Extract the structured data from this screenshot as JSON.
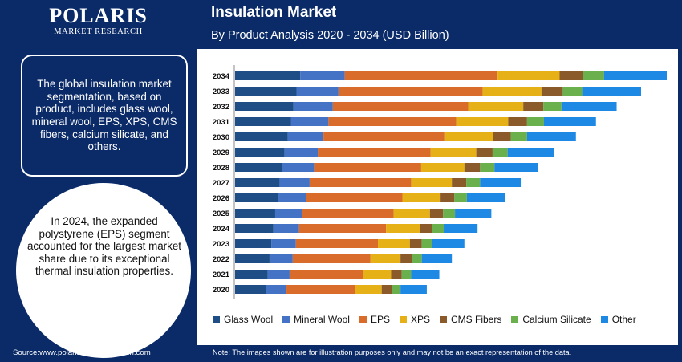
{
  "branding": {
    "logo_main": "POLARIS",
    "logo_sub": "MARKET RESEARCH"
  },
  "header": {
    "title": "Insulation Market",
    "subtitle": "By Product Analysis 2020 - 2034 (USD Billion)"
  },
  "sidebar": {
    "summary_text": "The global insulation market segmentation, based on product, includes glass wool, mineral wool, EPS, XPS, CMS fibers, calcium silicate, and others.",
    "highlight_text": "In 2024, the expanded polystyrene (EPS) segment accounted for the largest market share due to its exceptional thermal insulation properties."
  },
  "footer": {
    "source": "Source:www.polarismarketresearch.com",
    "note": "Note: The images shown are for illustration purposes only and may not be an exact representation of the data."
  },
  "colors": {
    "background_dark": "#0a2a68",
    "glass_wool": "#1f4e86",
    "mineral_wool": "#4472c4",
    "eps": "#d96b2b",
    "xps": "#e5b116",
    "cms_fibers": "#8b5a2b",
    "calcium_silicate": "#6ab04c",
    "other": "#1e88e5"
  },
  "chart_data": {
    "type": "bar",
    "orientation": "horizontal",
    "stacked": true,
    "title": "Insulation Market",
    "subtitle": "By Product Analysis 2020 - 2034 (USD Billion)",
    "categories": [
      "2034",
      "2033",
      "2032",
      "2031",
      "2030",
      "2029",
      "2028",
      "2027",
      "2026",
      "2025",
      "2024",
      "2023",
      "2022",
      "2021",
      "2020"
    ],
    "legend_position": "bottom",
    "grid": false,
    "series": [
      {
        "name": "Glass Wool",
        "color": "#1f4e86",
        "values": [
          10.4,
          9.8,
          9.3,
          8.9,
          8.4,
          7.9,
          7.5,
          7.1,
          6.8,
          6.4,
          6.1,
          5.8,
          5.5,
          5.2,
          4.9
        ]
      },
      {
        "name": "Mineral Wool",
        "color": "#4472c4",
        "values": [
          7.1,
          6.7,
          6.3,
          6.0,
          5.7,
          5.3,
          5.1,
          4.8,
          4.5,
          4.3,
          4.1,
          3.9,
          3.7,
          3.5,
          3.3
        ]
      },
      {
        "name": "EPS",
        "color": "#d96b2b",
        "values": [
          24.4,
          23.0,
          21.6,
          20.4,
          19.3,
          18.0,
          17.1,
          16.2,
          15.4,
          14.6,
          13.9,
          13.1,
          12.4,
          11.7,
          11.0
        ]
      },
      {
        "name": "XPS",
        "color": "#e5b116",
        "values": [
          9.9,
          9.4,
          8.8,
          8.3,
          7.8,
          7.3,
          6.9,
          6.5,
          6.1,
          5.8,
          5.4,
          5.1,
          4.8,
          4.5,
          4.2
        ]
      },
      {
        "name": "CMS Fibers",
        "color": "#8b5a2b",
        "values": [
          3.7,
          3.4,
          3.2,
          3.0,
          2.8,
          2.6,
          2.5,
          2.3,
          2.2,
          2.1,
          2.0,
          1.9,
          1.8,
          1.7,
          1.6
        ]
      },
      {
        "name": "Calcium Silicate",
        "color": "#6ab04c",
        "values": [
          3.4,
          3.1,
          2.9,
          2.7,
          2.6,
          2.4,
          2.3,
          2.2,
          2.0,
          1.9,
          1.8,
          1.7,
          1.6,
          1.5,
          1.4
        ]
      },
      {
        "name": "Other",
        "color": "#1e88e5",
        "values": [
          10.0,
          9.4,
          8.8,
          8.3,
          7.8,
          7.4,
          7.0,
          6.5,
          6.1,
          5.8,
          5.4,
          5.1,
          4.8,
          4.5,
          4.2
        ]
      }
    ]
  }
}
